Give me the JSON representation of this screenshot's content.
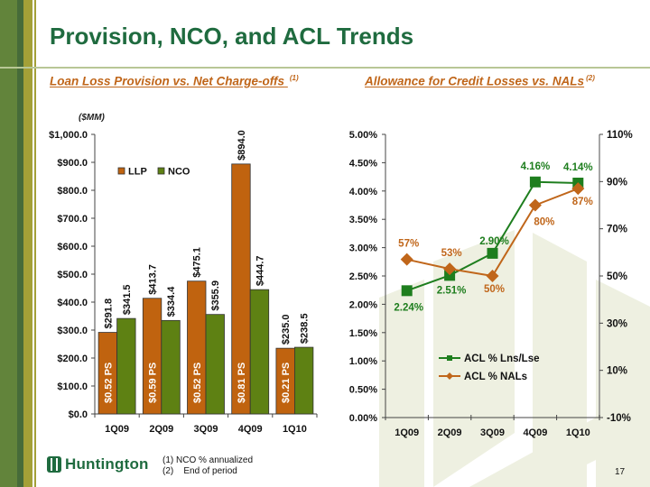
{
  "page": {
    "title": "Provision, NCO, and ACL Trends",
    "page_number": "17",
    "logo_text": "Huntington",
    "footnotes": [
      "(1)  NCO % annualized",
      "(2)    End of period"
    ]
  },
  "colors": {
    "title_green": "#1f6b3f",
    "subtitle_orange": "#c0661a",
    "llp_bar": "#c0630f",
    "nco_bar": "#5e8113",
    "acl_lns_line": "#1e7e1e",
    "acl_nals_line": "#c0661a",
    "watermark": "#eef0e1"
  },
  "chart_data": [
    {
      "type": "bar",
      "title": "Loan Loss Provision vs. Net Charge-offs",
      "title_superscript": "(1)",
      "unit_label": "($MM)",
      "xlabel": "",
      "ylabel": "",
      "categories": [
        "1Q09",
        "2Q09",
        "3Q09",
        "4Q09",
        "1Q10"
      ],
      "ylim": [
        0,
        1000
      ],
      "yticks": [
        0,
        100,
        200,
        300,
        400,
        500,
        600,
        700,
        800,
        900,
        1000
      ],
      "ytick_labels": [
        "$0.0",
        "$100.0",
        "$200.0",
        "$300.0",
        "$400.0",
        "$500.0",
        "$600.0",
        "$700.0",
        "$800.0",
        "$900.0",
        "$1,000.0"
      ],
      "grid": false,
      "legend_position": "top-left",
      "series": [
        {
          "name": "LLP",
          "values": [
            291.8,
            413.7,
            475.1,
            894.0,
            235.0
          ],
          "labels": [
            "$291.8",
            "$413.7",
            "$475.1",
            "$894.0",
            "$235.0"
          ],
          "inner_labels": [
            "$0.52  PS",
            "$0.59  PS",
            "$0.52  PS",
            "$0.81  PS",
            "$0.21  PS"
          ]
        },
        {
          "name": "NCO",
          "values": [
            341.5,
            334.4,
            355.9,
            444.7,
            238.5
          ],
          "labels": [
            "$341.5",
            "$334.4",
            "$355.9",
            "$444.7",
            "$238.5"
          ]
        }
      ]
    },
    {
      "type": "line",
      "title": "Allowance for Credit Losses vs. NALs",
      "title_superscript": "(2)",
      "xlabel": "",
      "ylabel": "",
      "categories": [
        "1Q09",
        "2Q09",
        "3Q09",
        "4Q09",
        "1Q10"
      ],
      "ylim": [
        0,
        5.0
      ],
      "yticks": [
        0,
        0.5,
        1.0,
        1.5,
        2.0,
        2.5,
        3.0,
        3.5,
        4.0,
        4.5,
        5.0
      ],
      "ytick_labels": [
        "0.00%",
        "0.50%",
        "1.00%",
        "1.50%",
        "2.00%",
        "2.50%",
        "3.00%",
        "3.50%",
        "4.00%",
        "4.50%",
        "5.00%"
      ],
      "y2lim": [
        -10,
        110
      ],
      "y2ticks": [
        -10,
        10,
        30,
        50,
        70,
        90,
        110
      ],
      "y2tick_labels": [
        "-10%",
        "10%",
        "30%",
        "50%",
        "70%",
        "90%",
        "110%"
      ],
      "grid": false,
      "legend_position": "bottom-center",
      "series": [
        {
          "name": "ACL % Lns/Lse",
          "axis": "left",
          "marker": "square",
          "values": [
            2.24,
            2.51,
            2.9,
            4.16,
            4.14
          ],
          "labels": [
            "2.24%",
            "2.51%",
            "2.90%",
            "4.16%",
            "4.14%"
          ]
        },
        {
          "name": "ACL % NALs",
          "axis": "right",
          "marker": "diamond",
          "values": [
            57,
            53,
            50,
            80,
            87
          ],
          "labels": [
            "57%",
            "53%",
            "50%",
            "80%",
            "87%"
          ]
        }
      ]
    }
  ]
}
